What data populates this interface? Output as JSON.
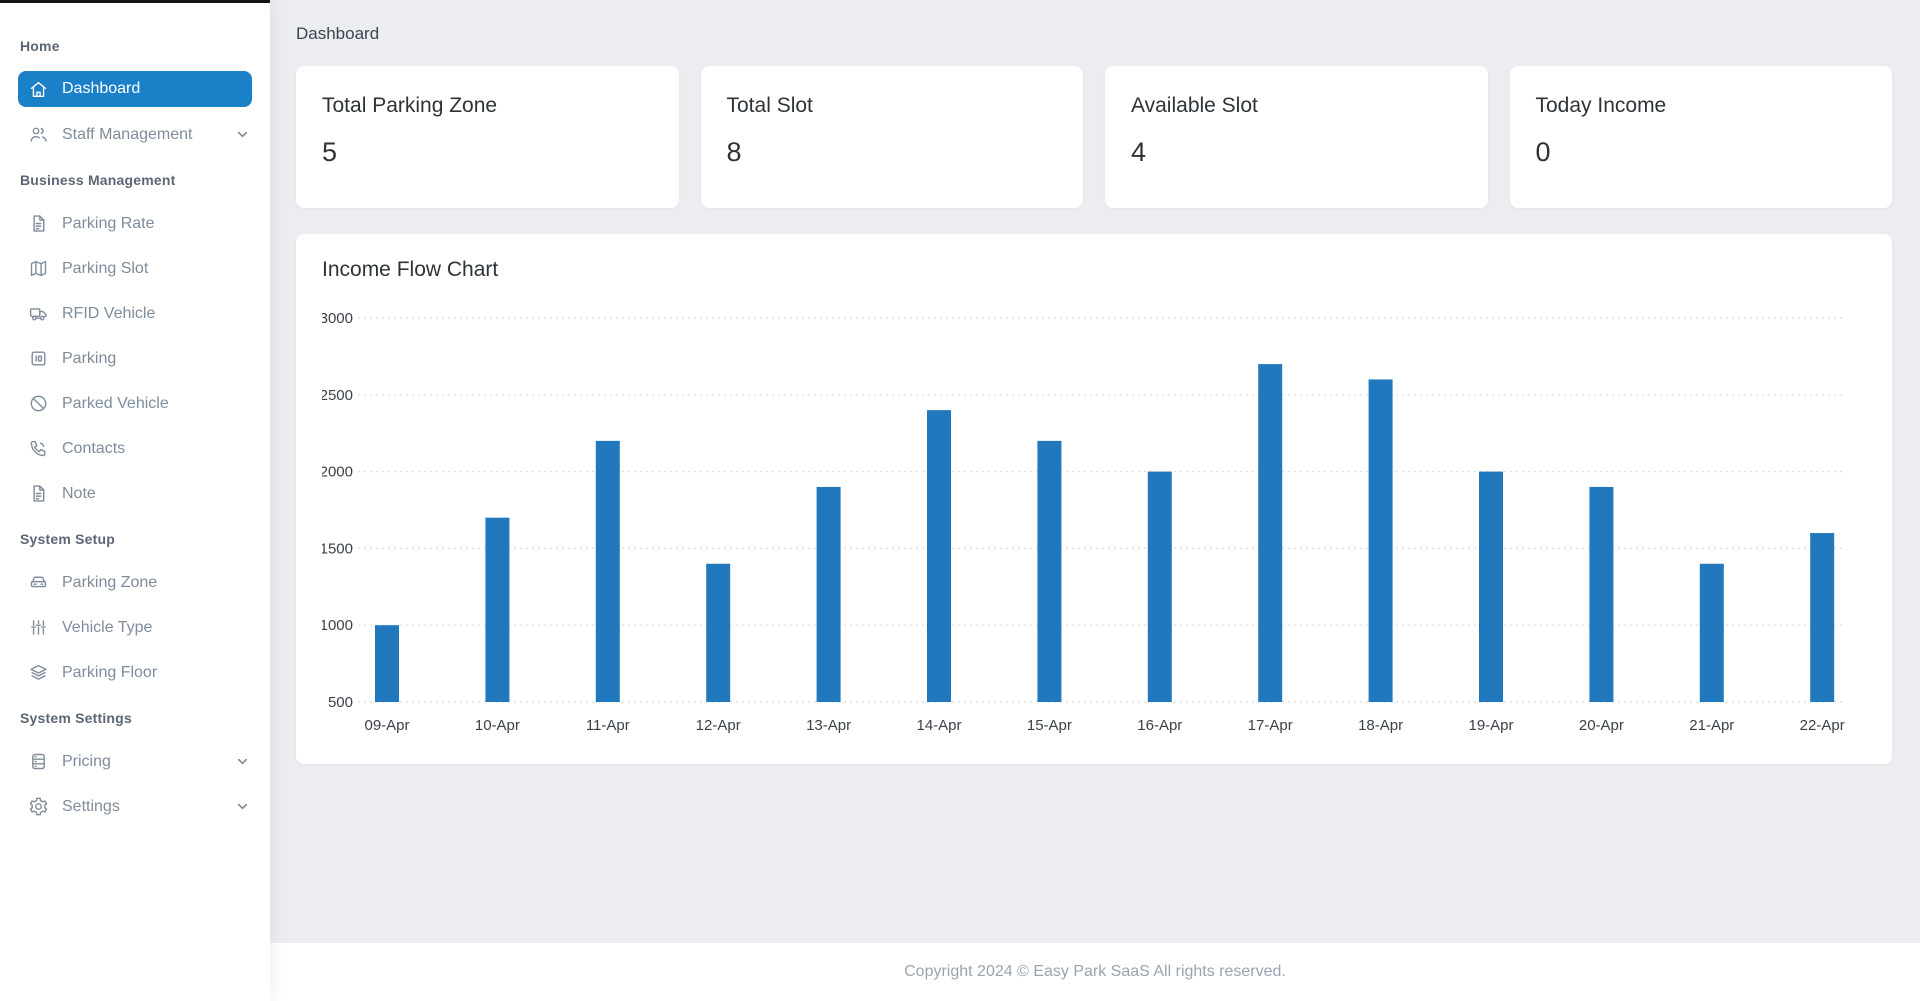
{
  "page": {
    "title": "Dashboard"
  },
  "sidebar": {
    "sections": [
      {
        "header": "Home",
        "items": [
          {
            "label": "Dashboard",
            "icon": "home-icon",
            "active": true
          },
          {
            "label": "Staff Management",
            "icon": "users-icon",
            "expandable": true
          }
        ]
      },
      {
        "header": "Business Management",
        "items": [
          {
            "label": "Parking Rate",
            "icon": "file-text-icon"
          },
          {
            "label": "Parking Slot",
            "icon": "map-icon"
          },
          {
            "label": "RFID Vehicle",
            "icon": "truck-icon"
          },
          {
            "label": "Parking",
            "icon": "parking-meter-icon"
          },
          {
            "label": "Parked Vehicle",
            "icon": "ban-icon"
          },
          {
            "label": "Contacts",
            "icon": "phone-icon"
          },
          {
            "label": "Note",
            "icon": "note-icon"
          }
        ]
      },
      {
        "header": "System Setup",
        "items": [
          {
            "label": "Parking Zone",
            "icon": "car-icon"
          },
          {
            "label": "Vehicle Type",
            "icon": "sliders-icon"
          },
          {
            "label": "Parking Floor",
            "icon": "layers-icon"
          }
        ]
      },
      {
        "header": "System Settings",
        "items": [
          {
            "label": "Pricing",
            "icon": "database-icon",
            "expandable": true
          },
          {
            "label": "Settings",
            "icon": "gear-icon",
            "expandable": true
          }
        ]
      }
    ]
  },
  "stat_cards": [
    {
      "label": "Total Parking Zone",
      "value": "5"
    },
    {
      "label": "Total Slot",
      "value": "8"
    },
    {
      "label": "Available Slot",
      "value": "4"
    },
    {
      "label": "Today Income",
      "value": "0"
    }
  ],
  "chart_data": {
    "type": "bar",
    "title": "Income Flow Chart",
    "categories": [
      "09-Apr",
      "10-Apr",
      "11-Apr",
      "12-Apr",
      "13-Apr",
      "14-Apr",
      "15-Apr",
      "16-Apr",
      "17-Apr",
      "18-Apr",
      "19-Apr",
      "20-Apr",
      "21-Apr",
      "22-Apr"
    ],
    "values": [
      1000,
      1700,
      2200,
      1400,
      1900,
      2400,
      2200,
      2000,
      2700,
      2600,
      2000,
      1900,
      1400,
      1600
    ],
    "xlabel": "",
    "ylabel": "",
    "ylim": [
      500,
      3000
    ],
    "ytick_step": 500,
    "grid": "horizontal-dotted",
    "legend": "none",
    "bar_color": "#2178bd"
  },
  "footer": {
    "copyright": "Copyright 2024 © Easy Park SaaS All rights reserved."
  },
  "colors": {
    "accent_active": "#1a80c8",
    "bar": "#2178bd",
    "main_bg": "#ecedf1",
    "grid_line": "#dcdee1",
    "axis_text": "#3b4148"
  }
}
